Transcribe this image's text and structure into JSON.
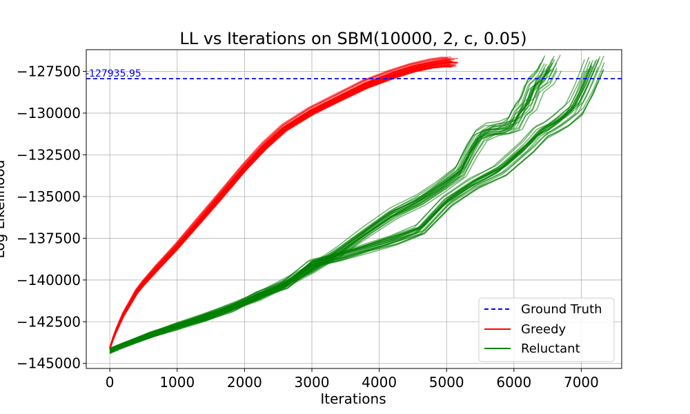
{
  "chart_data": {
    "type": "line",
    "title": "LL vs Iterations on SBM(10000, 2, c, 0.05)",
    "xlabel": "Iterations",
    "ylabel": "Log Likelihood",
    "xlim": [
      -350,
      7600
    ],
    "ylim": [
      -145300,
      -126200
    ],
    "xticks": [
      0,
      1000,
      2000,
      3000,
      4000,
      5000,
      6000,
      7000
    ],
    "xtick_labels": [
      "0",
      "1000",
      "2000",
      "3000",
      "4000",
      "5000",
      "6000",
      "7000"
    ],
    "yticks": [
      -145000,
      -142500,
      -140000,
      -137500,
      -135000,
      -132500,
      -130000,
      -127500
    ],
    "ytick_labels": [
      "−145000",
      "−142500",
      "−140000",
      "−137500",
      "−135000",
      "−132500",
      "−130000",
      "−127500"
    ],
    "grid": true,
    "legend_position": "lower-right",
    "ground_truth": {
      "name": "Ground Truth",
      "value": -127935.95,
      "label": "-127935.95",
      "color": "#0000ff"
    },
    "series": [
      {
        "name": "Greedy",
        "color": "#ff0000",
        "x": [
          0,
          50,
          100,
          200,
          300,
          400,
          500,
          700,
          1000,
          1300,
          1600,
          2000,
          2300,
          2600,
          3000,
          3400,
          3800,
          4200,
          4500,
          4800,
          5000,
          5100
        ],
        "y": [
          -144100,
          -143500,
          -143000,
          -142100,
          -141400,
          -140700,
          -140200,
          -139300,
          -138000,
          -136600,
          -135200,
          -133300,
          -132000,
          -130900,
          -129900,
          -129100,
          -128300,
          -127700,
          -127300,
          -127050,
          -126950,
          -126950
        ]
      },
      {
        "name": "Reluctant",
        "color": "#008000",
        "branches": [
          {
            "x": [
              0,
              200,
              600,
              1000,
              1400,
              1800,
              2200,
              2600,
              3000,
              3400,
              3800,
              4200,
              4600,
              4900,
              5200,
              5350,
              5500,
              5650,
              5850,
              6000,
              6100,
              6200,
              6300,
              6450,
              6550
            ],
            "y": [
              -144200,
              -143900,
              -143300,
              -142700,
              -142200,
              -141600,
              -141000,
              -140200,
              -139300,
              -138300,
              -137100,
              -136000,
              -135200,
              -134400,
              -133500,
              -132300,
              -131300,
              -131000,
              -130900,
              -130600,
              -129800,
              -129400,
              -128300,
              -127800,
              -127000
            ]
          },
          {
            "x": [
              0,
              200,
              600,
              1000,
              1400,
              1800,
              2200,
              2600,
              3000,
              3400,
              3800,
              4200,
              4600,
              5000,
              5400,
              5800,
              6200,
              6400,
              6550,
              6700,
              6900,
              7050,
              7200
            ],
            "y": [
              -144300,
              -143900,
              -143300,
              -142800,
              -142300,
              -141700,
              -140900,
              -140300,
              -139000,
              -138600,
              -138100,
              -137600,
              -137000,
              -135300,
              -134200,
              -133400,
              -132000,
              -131100,
              -130800,
              -130400,
              -129700,
              -128500,
              -127000
            ]
          }
        ]
      }
    ]
  }
}
